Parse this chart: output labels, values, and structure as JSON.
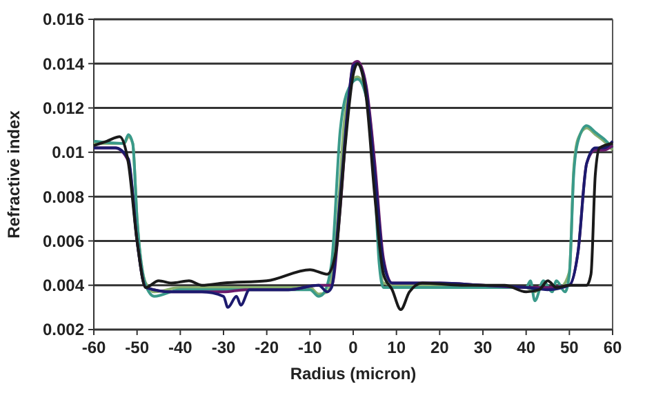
{
  "chart_data": {
    "type": "line",
    "xlabel": "Radius (micron)",
    "ylabel": "Refractive index",
    "xlim": [
      -60,
      60
    ],
    "xticks": [
      -60,
      -50,
      -40,
      -30,
      -20,
      -10,
      0,
      10,
      20,
      30,
      40,
      50,
      60
    ],
    "ylim": [
      0.002,
      0.016
    ],
    "yticks": [
      0.002,
      0.004,
      0.006,
      0.008,
      0.01,
      0.012,
      0.014,
      0.016
    ],
    "grid": "y",
    "marker": "none",
    "line_style": "solid",
    "series": [
      {
        "color": "#8ab070",
        "x": [
          -60,
          -53,
          -52,
          -51,
          -50,
          -48,
          -46,
          -40,
          -30,
          -20,
          -10,
          -8,
          -6,
          -4,
          -2,
          0,
          1,
          3,
          5,
          6,
          7,
          10,
          20,
          30,
          40,
          42,
          44,
          46,
          48,
          50,
          51,
          52,
          54,
          56,
          58,
          60
        ],
        "values": [
          0.0104,
          0.0104,
          0.0107,
          0.0104,
          0.007,
          0.0041,
          0.0037,
          0.0039,
          0.0039,
          0.0039,
          0.0039,
          0.0036,
          0.0037,
          0.006,
          0.0115,
          0.0133,
          0.0134,
          0.0126,
          0.009,
          0.0055,
          0.0041,
          0.004,
          0.004,
          0.0039,
          0.0039,
          0.0037,
          0.0041,
          0.0038,
          0.0039,
          0.0046,
          0.0092,
          0.0106,
          0.0111,
          0.0108,
          0.0105,
          0.0101
        ]
      },
      {
        "color": "#3a9a8a",
        "x": [
          -60,
          -53,
          -52,
          -51,
          -50,
          -48,
          -46,
          -40,
          -30,
          -20,
          -10,
          -8,
          -7,
          -5,
          -3,
          -1,
          1,
          3,
          5,
          6,
          7,
          10,
          20,
          30,
          40,
          41,
          42,
          44,
          46,
          47,
          49,
          50,
          51,
          52,
          54,
          56,
          58,
          60
        ],
        "values": [
          0.0105,
          0.0104,
          0.0108,
          0.0104,
          0.007,
          0.004,
          0.0035,
          0.0038,
          0.0038,
          0.0038,
          0.0038,
          0.0035,
          0.0036,
          0.005,
          0.011,
          0.0129,
          0.0133,
          0.0125,
          0.0085,
          0.005,
          0.0039,
          0.0039,
          0.0039,
          0.0039,
          0.0039,
          0.0042,
          0.0033,
          0.0042,
          0.0037,
          0.0042,
          0.0037,
          0.0045,
          0.009,
          0.0105,
          0.0112,
          0.0109,
          0.0106,
          0.0102
        ]
      },
      {
        "color": "#6a1a6a",
        "x": [
          -60,
          -55,
          -52,
          -50,
          -48,
          -42,
          -35,
          -30,
          -25,
          -15,
          -8,
          -5,
          -3,
          -1,
          0,
          1,
          3,
          5,
          7,
          9,
          20,
          30,
          40,
          45,
          50,
          52,
          54,
          56,
          58,
          60
        ],
        "values": [
          0.0102,
          0.0102,
          0.0096,
          0.006,
          0.0039,
          0.0037,
          0.0037,
          0.0037,
          0.0038,
          0.0038,
          0.004,
          0.004,
          0.0075,
          0.0125,
          0.014,
          0.0141,
          0.013,
          0.0095,
          0.0052,
          0.0041,
          0.0041,
          0.004,
          0.0039,
          0.0039,
          0.004,
          0.0055,
          0.0095,
          0.0101,
          0.0101,
          0.0103
        ]
      },
      {
        "color": "#1c1a6e",
        "x": [
          -60,
          -55,
          -52,
          -50,
          -48,
          -42,
          -35,
          -30,
          -29,
          -27,
          -26,
          -24,
          -15,
          -8,
          -6,
          -5,
          -3,
          -1,
          0,
          1,
          3,
          5,
          7,
          9,
          20,
          30,
          40,
          45,
          50,
          52,
          54,
          56,
          58,
          60
        ],
        "values": [
          0.0102,
          0.0102,
          0.0097,
          0.006,
          0.0039,
          0.0037,
          0.0037,
          0.0035,
          0.003,
          0.0035,
          0.0031,
          0.0038,
          0.0038,
          0.004,
          0.0037,
          0.0039,
          0.008,
          0.0125,
          0.0139,
          0.014,
          0.0128,
          0.009,
          0.005,
          0.0041,
          0.0041,
          0.004,
          0.0039,
          0.0038,
          0.004,
          0.0055,
          0.0095,
          0.0102,
          0.0102,
          0.0105
        ]
      },
      {
        "color": "#1a1a1a",
        "x": [
          -60,
          -57,
          -54,
          -52,
          -50,
          -48,
          -45,
          -42,
          -38,
          -35,
          -30,
          -20,
          -10,
          -6,
          -4,
          -2,
          0,
          1,
          3,
          5,
          7,
          9,
          11,
          13,
          16,
          25,
          30,
          35,
          40,
          43,
          45,
          47,
          50,
          54,
          55,
          56,
          57,
          60
        ],
        "values": [
          0.0103,
          0.0105,
          0.0107,
          0.0095,
          0.006,
          0.0039,
          0.0042,
          0.0041,
          0.0042,
          0.004,
          0.0041,
          0.0042,
          0.0047,
          0.0045,
          0.0055,
          0.01,
          0.0135,
          0.014,
          0.0125,
          0.008,
          0.0045,
          0.0038,
          0.0029,
          0.0037,
          0.0041,
          0.004,
          0.004,
          0.004,
          0.0037,
          0.0038,
          0.0042,
          0.0039,
          0.004,
          0.004,
          0.0045,
          0.009,
          0.0102,
          0.0104
        ]
      }
    ]
  }
}
